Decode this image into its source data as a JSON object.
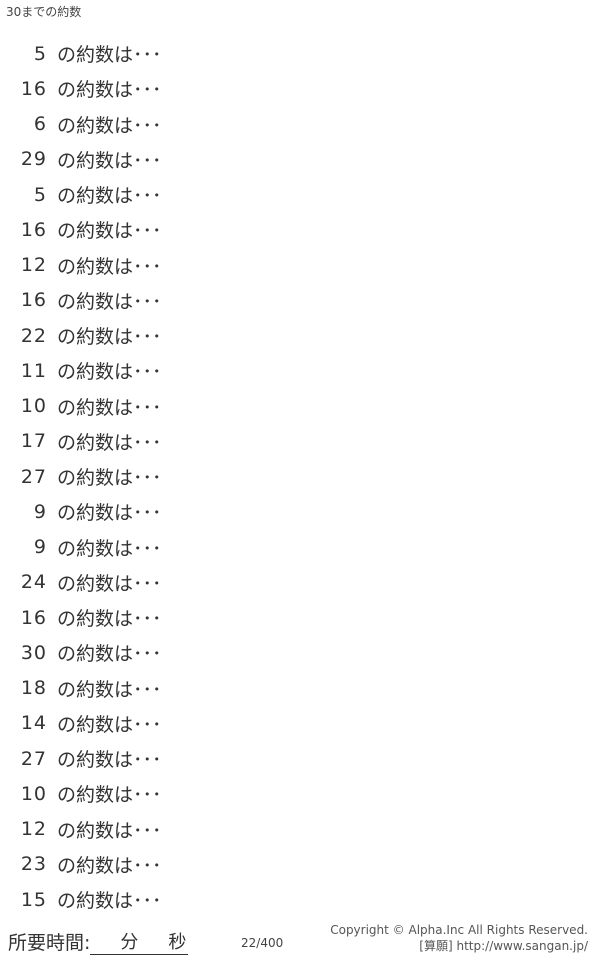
{
  "title": "30までの約数",
  "suffix": "の約数は･･･",
  "questions": [
    5,
    16,
    6,
    29,
    5,
    16,
    12,
    16,
    22,
    11,
    10,
    17,
    27,
    9,
    9,
    24,
    16,
    30,
    18,
    14,
    27,
    10,
    12,
    23,
    15
  ],
  "footer": {
    "time_label": "所要時間:",
    "minutes_label": "分",
    "seconds_label": "秒",
    "page": "22/400",
    "copyright": "Copyright ©  Alpha.Inc All Rights Reserved.",
    "site": "[算願] http://www.sangan.jp/"
  }
}
